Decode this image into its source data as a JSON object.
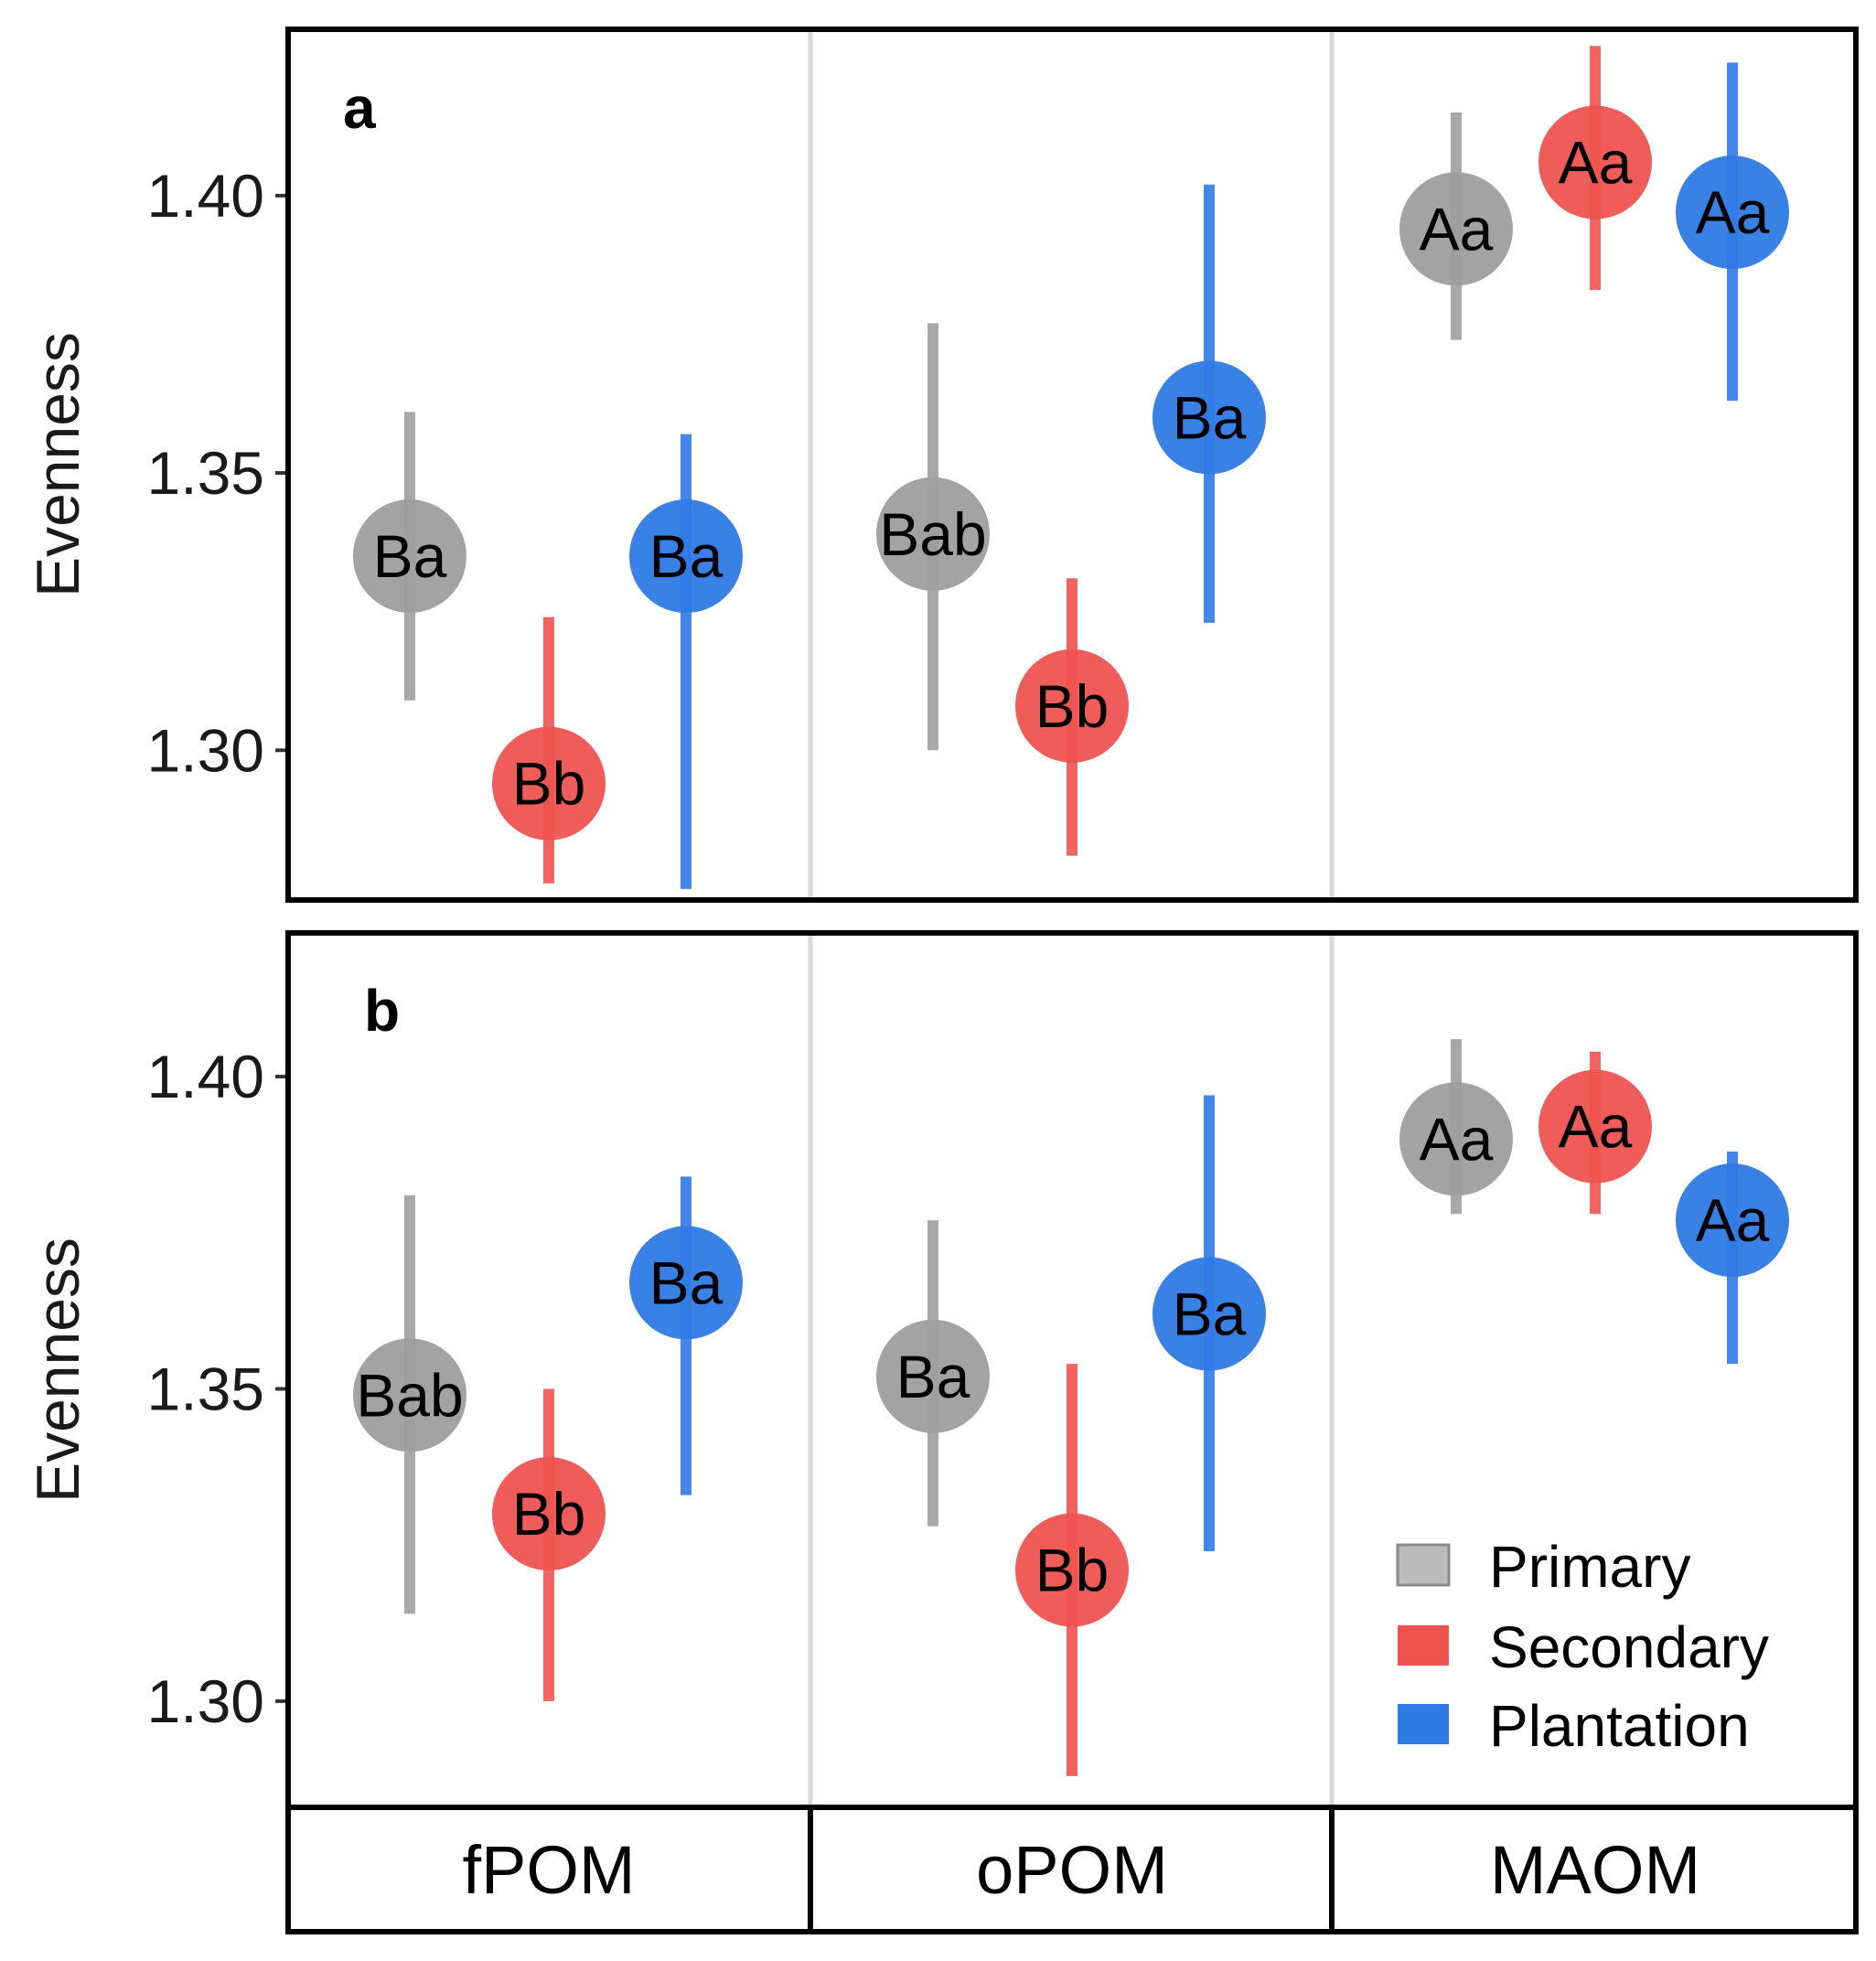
{
  "chart_data": {
    "type": "scatter",
    "categories": [
      "fPOM",
      "oPOM",
      "MAOM"
    ],
    "colors": {
      "Primary": "#9e9e9e",
      "Secondary": "#ef5350",
      "Plantation": "#2f7ae5"
    },
    "legend": {
      "position": "bottom-right",
      "entries": [
        "Primary",
        "Secondary",
        "Plantation"
      ]
    },
    "grid": "vertical separators between categories",
    "panels": [
      {
        "tag": "a",
        "ylabel": "Evenness",
        "ylim": [
          1.273,
          1.43
        ],
        "yticks": [
          1.3,
          1.35,
          1.4
        ],
        "ytick_labels": [
          "1.30",
          "1.35",
          "1.40"
        ],
        "series": [
          {
            "name": "Primary",
            "points": [
              {
                "category": "fPOM",
                "y": 1.335,
                "lo": 1.309,
                "hi": 1.361,
                "label": "Ba"
              },
              {
                "category": "oPOM",
                "y": 1.339,
                "lo": 1.3,
                "hi": 1.377,
                "label": "Bab"
              },
              {
                "category": "MAOM",
                "y": 1.394,
                "lo": 1.374,
                "hi": 1.415,
                "label": "Aa"
              }
            ]
          },
          {
            "name": "Secondary",
            "points": [
              {
                "category": "fPOM",
                "y": 1.294,
                "lo": 1.276,
                "hi": 1.324,
                "label": "Bb"
              },
              {
                "category": "oPOM",
                "y": 1.308,
                "lo": 1.281,
                "hi": 1.331,
                "label": "Bb"
              },
              {
                "category": "MAOM",
                "y": 1.406,
                "lo": 1.383,
                "hi": 1.427,
                "label": "Aa"
              }
            ]
          },
          {
            "name": "Plantation",
            "points": [
              {
                "category": "fPOM",
                "y": 1.335,
                "lo": 1.275,
                "hi": 1.357,
                "label": "Ba"
              },
              {
                "category": "oPOM",
                "y": 1.36,
                "lo": 1.323,
                "hi": 1.402,
                "label": "Ba"
              },
              {
                "category": "MAOM",
                "y": 1.397,
                "lo": 1.363,
                "hi": 1.424,
                "label": "Aa"
              }
            ]
          }
        ]
      },
      {
        "tag": "b",
        "ylabel": "Evenness",
        "ylim": [
          1.283,
          1.423
        ],
        "yticks": [
          1.3,
          1.35,
          1.4
        ],
        "ytick_labels": [
          "1.30",
          "1.35",
          "1.40"
        ],
        "series": [
          {
            "name": "Primary",
            "points": [
              {
                "category": "fPOM",
                "y": 1.349,
                "lo": 1.314,
                "hi": 1.381,
                "label": "Bab"
              },
              {
                "category": "oPOM",
                "y": 1.352,
                "lo": 1.328,
                "hi": 1.377,
                "label": "Ba"
              },
              {
                "category": "MAOM",
                "y": 1.39,
                "lo": 1.378,
                "hi": 1.406,
                "label": "Aa"
              }
            ]
          },
          {
            "name": "Secondary",
            "points": [
              {
                "category": "fPOM",
                "y": 1.33,
                "lo": 1.3,
                "hi": 1.35,
                "label": "Bb"
              },
              {
                "category": "oPOM",
                "y": 1.321,
                "lo": 1.288,
                "hi": 1.354,
                "label": "Bb"
              },
              {
                "category": "MAOM",
                "y": 1.392,
                "lo": 1.378,
                "hi": 1.404,
                "label": "Aa"
              }
            ]
          },
          {
            "name": "Plantation",
            "points": [
              {
                "category": "fPOM",
                "y": 1.367,
                "lo": 1.333,
                "hi": 1.384,
                "label": "Ba"
              },
              {
                "category": "oPOM",
                "y": 1.362,
                "lo": 1.324,
                "hi": 1.397,
                "label": "Ba"
              },
              {
                "category": "MAOM",
                "y": 1.377,
                "lo": 1.354,
                "hi": 1.388,
                "label": "Aa"
              }
            ]
          }
        ]
      }
    ]
  }
}
